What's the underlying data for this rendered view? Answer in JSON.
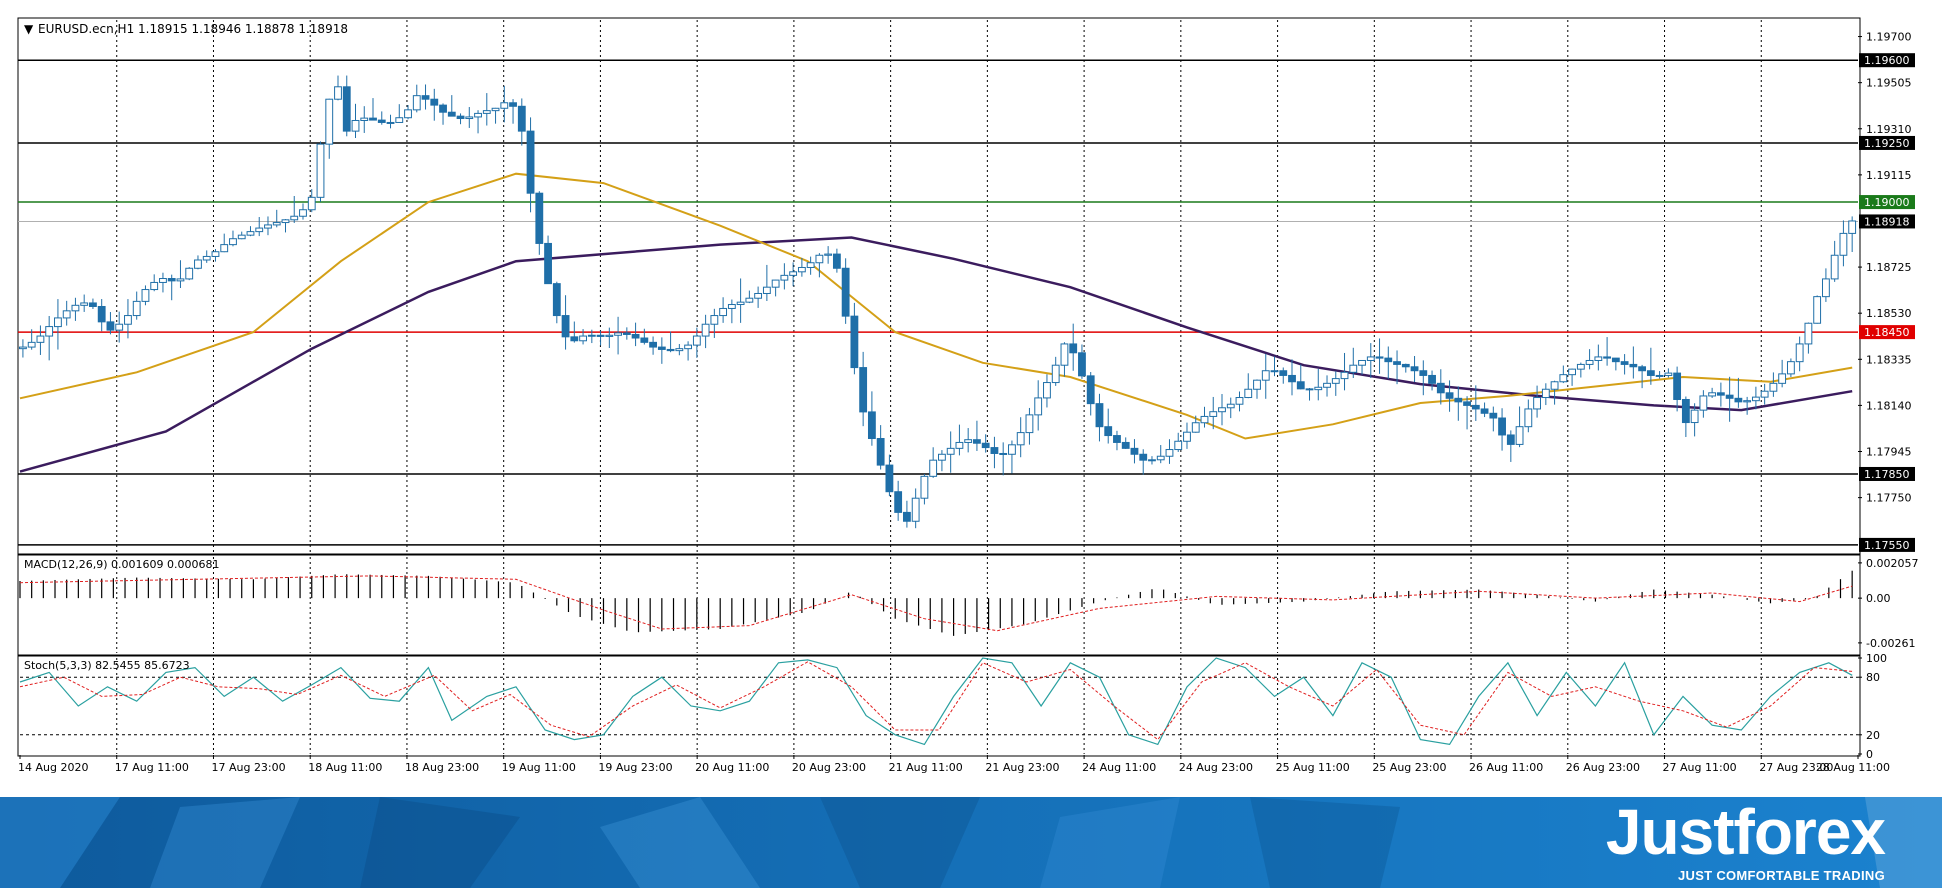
{
  "chart": {
    "symbol_title": "EURUSD.ecn,H1  1.18915 1.18946 1.18878 1.18918",
    "price_axis_ticks": [
      "1.19700",
      "1.19505",
      "1.19310",
      "1.19115",
      "1.18725",
      "1.18530",
      "1.18335",
      "1.18140",
      "1.17945",
      "1.17750"
    ],
    "time_axis_labels": [
      "14 Aug 2020",
      "17 Aug 11:00",
      "17 Aug 23:00",
      "18 Aug 11:00",
      "18 Aug 23:00",
      "19 Aug 11:00",
      "19 Aug 23:00",
      "20 Aug 11:00",
      "20 Aug 23:00",
      "21 Aug 11:00",
      "21 Aug 23:00",
      "24 Aug 11:00",
      "24 Aug 23:00",
      "25 Aug 11:00",
      "25 Aug 23:00",
      "26 Aug 11:00",
      "26 Aug 23:00",
      "27 Aug 11:00",
      "27 Aug 23:00",
      "28 Aug 11:00"
    ],
    "macd_title": "MACD(12,26,9) 0.001609 0.000681",
    "macd_ticks": [
      "0.002057",
      "0.00",
      "-0.00261"
    ],
    "stoch_title": "Stoch(5,3,3) 82.5455 85.6723",
    "stoch_ticks": [
      "100",
      "80",
      "20",
      "0"
    ]
  },
  "branding": {
    "logo_text": "Justforex",
    "tagline": "JUST COMFORTABLE TRADING"
  },
  "colors": {
    "bull_candle": "#1f6fa8",
    "bear_candle": "#1f6fa8",
    "ma_fast": "#d4a017",
    "ma_slow": "#3b1c5e",
    "support_line": "#000000",
    "green_level": "#1a7a1a",
    "red_level": "#e00000",
    "current_price_line": "#b0b0b0",
    "macd_signal": "#e02020",
    "stoch_main": "#2aa0a0",
    "stoch_signal": "#e02020",
    "banner_blue": "#1b6fb3"
  },
  "chart_data": {
    "type": "candlestick",
    "symbol": "EURUSD.ecn",
    "timeframe": "H1",
    "ohlc_last": {
      "open": 1.18915,
      "high": 1.18946,
      "low": 1.18878,
      "close": 1.18918
    },
    "ylim": [
      1.1752,
      1.1977
    ],
    "horizontal_levels": [
      {
        "price": 1.196,
        "label": "1.19600",
        "color": "#000000"
      },
      {
        "price": 1.1925,
        "label": "1.19250",
        "color": "#000000"
      },
      {
        "price": 1.19,
        "label": "1.19000",
        "color": "#1a7a1a"
      },
      {
        "price": 1.18918,
        "label": "1.18918",
        "color": "#000000"
      },
      {
        "price": 1.1845,
        "label": "1.18450",
        "color": "#e00000"
      },
      {
        "price": 1.1785,
        "label": "1.17850",
        "color": "#000000"
      },
      {
        "price": 1.1755,
        "label": "1.17550",
        "color": "#000000"
      }
    ],
    "close_path": [
      [
        0,
        1.1838
      ],
      [
        6,
        1.1842
      ],
      [
        12,
        1.185
      ],
      [
        18,
        1.1856
      ],
      [
        24,
        1.1858
      ],
      [
        30,
        1.1845
      ],
      [
        36,
        1.185
      ],
      [
        42,
        1.1862
      ],
      [
        48,
        1.1868
      ],
      [
        54,
        1.1866
      ],
      [
        60,
        1.1875
      ],
      [
        66,
        1.1878
      ],
      [
        72,
        1.1884
      ],
      [
        78,
        1.1887
      ],
      [
        84,
        1.189
      ],
      [
        90,
        1.1892
      ],
      [
        96,
        1.1895
      ],
      [
        100,
        1.1902
      ],
      [
        104,
        1.1932
      ],
      [
        108,
        1.1955
      ],
      [
        112,
        1.193
      ],
      [
        116,
        1.1936
      ],
      [
        120,
        1.1935
      ],
      [
        126,
        1.1933
      ],
      [
        132,
        1.1937
      ],
      [
        136,
        1.1945
      ],
      [
        140,
        1.1943
      ],
      [
        146,
        1.1937
      ],
      [
        152,
        1.1935
      ],
      [
        158,
        1.1938
      ],
      [
        164,
        1.194
      ],
      [
        168,
        1.1944
      ],
      [
        172,
        1.193
      ],
      [
        176,
        1.1895
      ],
      [
        180,
        1.187
      ],
      [
        184,
        1.1852
      ],
      [
        188,
        1.184
      ],
      [
        194,
        1.1844
      ],
      [
        200,
        1.1843
      ],
      [
        206,
        1.1845
      ],
      [
        212,
        1.1842
      ],
      [
        218,
        1.1838
      ],
      [
        224,
        1.1837
      ],
      [
        230,
        1.184
      ],
      [
        236,
        1.185
      ],
      [
        242,
        1.1856
      ],
      [
        248,
        1.1858
      ],
      [
        254,
        1.1862
      ],
      [
        260,
        1.1868
      ],
      [
        266,
        1.1871
      ],
      [
        272,
        1.1875
      ],
      [
        276,
        1.188
      ],
      [
        280,
        1.1872
      ],
      [
        284,
        1.1845
      ],
      [
        288,
        1.1815
      ],
      [
        292,
        1.18
      ],
      [
        296,
        1.1785
      ],
      [
        300,
        1.177
      ],
      [
        304,
        1.1765
      ],
      [
        308,
        1.1778
      ],
      [
        312,
        1.179
      ],
      [
        318,
        1.1795
      ],
      [
        324,
        1.18
      ],
      [
        330,
        1.1797
      ],
      [
        336,
        1.1792
      ],
      [
        342,
        1.18
      ],
      [
        348,
        1.1815
      ],
      [
        354,
        1.1828
      ],
      [
        358,
        1.184
      ],
      [
        362,
        1.1835
      ],
      [
        366,
        1.1818
      ],
      [
        370,
        1.1805
      ],
      [
        374,
        1.18
      ],
      [
        380,
        1.1795
      ],
      [
        386,
        1.179
      ],
      [
        392,
        1.1793
      ],
      [
        398,
        1.18
      ],
      [
        404,
        1.1808
      ],
      [
        410,
        1.1812
      ],
      [
        416,
        1.1815
      ],
      [
        422,
        1.1822
      ],
      [
        428,
        1.183
      ],
      [
        434,
        1.1826
      ],
      [
        440,
        1.182
      ],
      [
        446,
        1.1822
      ],
      [
        452,
        1.1826
      ],
      [
        458,
        1.1832
      ],
      [
        464,
        1.1835
      ],
      [
        470,
        1.1832
      ],
      [
        476,
        1.183
      ],
      [
        482,
        1.1826
      ],
      [
        488,
        1.1818
      ],
      [
        494,
        1.1815
      ],
      [
        500,
        1.1812
      ],
      [
        506,
        1.1808
      ],
      [
        510,
        1.1795
      ],
      [
        514,
        1.1805
      ],
      [
        518,
        1.1815
      ],
      [
        524,
        1.1822
      ],
      [
        530,
        1.1828
      ],
      [
        536,
        1.1832
      ],
      [
        542,
        1.1835
      ],
      [
        548,
        1.1832
      ],
      [
        554,
        1.183
      ],
      [
        560,
        1.1826
      ],
      [
        566,
        1.1828
      ],
      [
        570,
        1.1805
      ],
      [
        574,
        1.1812
      ],
      [
        578,
        1.182
      ],
      [
        584,
        1.1818
      ],
      [
        590,
        1.1815
      ],
      [
        596,
        1.1818
      ],
      [
        600,
        1.1822
      ],
      [
        606,
        1.183
      ],
      [
        612,
        1.1845
      ],
      [
        616,
        1.186
      ],
      [
        620,
        1.187
      ],
      [
        624,
        1.1885
      ],
      [
        628,
        1.1892
      ]
    ],
    "ma_fast_path": [
      [
        0,
        1.1817
      ],
      [
        40,
        1.1828
      ],
      [
        80,
        1.1845
      ],
      [
        110,
        1.1875
      ],
      [
        140,
        1.19
      ],
      [
        170,
        1.1912
      ],
      [
        200,
        1.1908
      ],
      [
        240,
        1.189
      ],
      [
        270,
        1.1875
      ],
      [
        300,
        1.1845
      ],
      [
        330,
        1.1832
      ],
      [
        360,
        1.1826
      ],
      [
        400,
        1.181
      ],
      [
        420,
        1.18
      ],
      [
        450,
        1.1806
      ],
      [
        480,
        1.1815
      ],
      [
        510,
        1.1818
      ],
      [
        540,
        1.1822
      ],
      [
        570,
        1.1826
      ],
      [
        600,
        1.1824
      ],
      [
        628,
        1.183
      ]
    ],
    "ma_slow_path": [
      [
        0,
        1.1786
      ],
      [
        50,
        1.1803
      ],
      [
        100,
        1.1838
      ],
      [
        140,
        1.1862
      ],
      [
        170,
        1.1875
      ],
      [
        200,
        1.1878
      ],
      [
        240,
        1.1882
      ],
      [
        285,
        1.1885
      ],
      [
        320,
        1.1876
      ],
      [
        360,
        1.1864
      ],
      [
        400,
        1.1847
      ],
      [
        440,
        1.1831
      ],
      [
        480,
        1.1823
      ],
      [
        520,
        1.1818
      ],
      [
        560,
        1.1814
      ],
      [
        590,
        1.1812
      ],
      [
        628,
        1.182
      ]
    ],
    "macd_ylim": [
      -0.0032,
      0.0024
    ],
    "macd_path": [
      [
        0,
        0.001
      ],
      [
        40,
        0.0012
      ],
      [
        80,
        0.0011
      ],
      [
        110,
        0.0014
      ],
      [
        140,
        0.0013
      ],
      [
        170,
        0.0009
      ],
      [
        190,
        -0.001
      ],
      [
        210,
        -0.002
      ],
      [
        240,
        -0.0018
      ],
      [
        270,
        -0.0008
      ],
      [
        285,
        0.0004
      ],
      [
        300,
        -0.0012
      ],
      [
        320,
        -0.0022
      ],
      [
        345,
        -0.0015
      ],
      [
        370,
        -0.0002
      ],
      [
        390,
        0.0006
      ],
      [
        410,
        -0.0004
      ],
      [
        440,
        -0.0002
      ],
      [
        470,
        0.0004
      ],
      [
        500,
        0.0005
      ],
      [
        520,
        0.0002
      ],
      [
        540,
        -0.0002
      ],
      [
        560,
        0.0005
      ],
      [
        580,
        0.0002
      ],
      [
        600,
        -0.0003
      ],
      [
        615,
        0.0
      ],
      [
        628,
        0.0016
      ]
    ],
    "macd_signal_path": [
      [
        0,
        0.0009
      ],
      [
        60,
        0.0011
      ],
      [
        120,
        0.0013
      ],
      [
        170,
        0.0011
      ],
      [
        200,
        -0.0007
      ],
      [
        220,
        -0.0018
      ],
      [
        250,
        -0.0016
      ],
      [
        285,
        0.0002
      ],
      [
        310,
        -0.0012
      ],
      [
        335,
        -0.0019
      ],
      [
        370,
        -0.0006
      ],
      [
        410,
        0.0001
      ],
      [
        450,
        -0.0001
      ],
      [
        500,
        0.0004
      ],
      [
        540,
        0.0
      ],
      [
        580,
        0.0003
      ],
      [
        610,
        -0.0002
      ],
      [
        628,
        0.0007
      ]
    ],
    "stoch_ylim": [
      0,
      100
    ],
    "stoch_levels": [
      80,
      20
    ],
    "stoch_main_path": [
      [
        0,
        75
      ],
      [
        10,
        85
      ],
      [
        20,
        50
      ],
      [
        30,
        70
      ],
      [
        40,
        55
      ],
      [
        50,
        85
      ],
      [
        60,
        90
      ],
      [
        70,
        60
      ],
      [
        80,
        80
      ],
      [
        90,
        55
      ],
      [
        100,
        72
      ],
      [
        110,
        90
      ],
      [
        120,
        58
      ],
      [
        130,
        55
      ],
      [
        140,
        90
      ],
      [
        148,
        35
      ],
      [
        160,
        60
      ],
      [
        170,
        70
      ],
      [
        180,
        25
      ],
      [
        190,
        15
      ],
      [
        200,
        20
      ],
      [
        210,
        60
      ],
      [
        220,
        80
      ],
      [
        230,
        50
      ],
      [
        240,
        45
      ],
      [
        250,
        55
      ],
      [
        260,
        95
      ],
      [
        270,
        98
      ],
      [
        280,
        90
      ],
      [
        290,
        40
      ],
      [
        300,
        20
      ],
      [
        310,
        10
      ],
      [
        320,
        60
      ],
      [
        330,
        100
      ],
      [
        340,
        95
      ],
      [
        350,
        50
      ],
      [
        360,
        95
      ],
      [
        370,
        80
      ],
      [
        380,
        20
      ],
      [
        390,
        10
      ],
      [
        400,
        70
      ],
      [
        410,
        100
      ],
      [
        420,
        90
      ],
      [
        430,
        60
      ],
      [
        440,
        80
      ],
      [
        450,
        40
      ],
      [
        460,
        95
      ],
      [
        470,
        80
      ],
      [
        480,
        15
      ],
      [
        490,
        10
      ],
      [
        500,
        60
      ],
      [
        510,
        95
      ],
      [
        520,
        40
      ],
      [
        530,
        85
      ],
      [
        540,
        50
      ],
      [
        550,
        95
      ],
      [
        560,
        20
      ],
      [
        570,
        60
      ],
      [
        580,
        30
      ],
      [
        590,
        25
      ],
      [
        600,
        60
      ],
      [
        610,
        85
      ],
      [
        620,
        95
      ],
      [
        628,
        82
      ]
    ],
    "stoch_signal_path": [
      [
        0,
        70
      ],
      [
        15,
        80
      ],
      [
        28,
        60
      ],
      [
        42,
        62
      ],
      [
        55,
        80
      ],
      [
        68,
        70
      ],
      [
        82,
        68
      ],
      [
        95,
        62
      ],
      [
        110,
        82
      ],
      [
        125,
        60
      ],
      [
        142,
        82
      ],
      [
        155,
        45
      ],
      [
        168,
        62
      ],
      [
        182,
        30
      ],
      [
        195,
        18
      ],
      [
        210,
        50
      ],
      [
        225,
        72
      ],
      [
        240,
        48
      ],
      [
        255,
        70
      ],
      [
        270,
        96
      ],
      [
        285,
        70
      ],
      [
        300,
        25
      ],
      [
        315,
        25
      ],
      [
        330,
        95
      ],
      [
        345,
        75
      ],
      [
        360,
        88
      ],
      [
        375,
        50
      ],
      [
        390,
        15
      ],
      [
        405,
        75
      ],
      [
        420,
        95
      ],
      [
        435,
        70
      ],
      [
        450,
        50
      ],
      [
        465,
        88
      ],
      [
        480,
        30
      ],
      [
        495,
        20
      ],
      [
        510,
        85
      ],
      [
        525,
        60
      ],
      [
        540,
        70
      ],
      [
        555,
        55
      ],
      [
        570,
        45
      ],
      [
        585,
        28
      ],
      [
        600,
        50
      ],
      [
        615,
        90
      ],
      [
        628,
        86
      ]
    ]
  }
}
